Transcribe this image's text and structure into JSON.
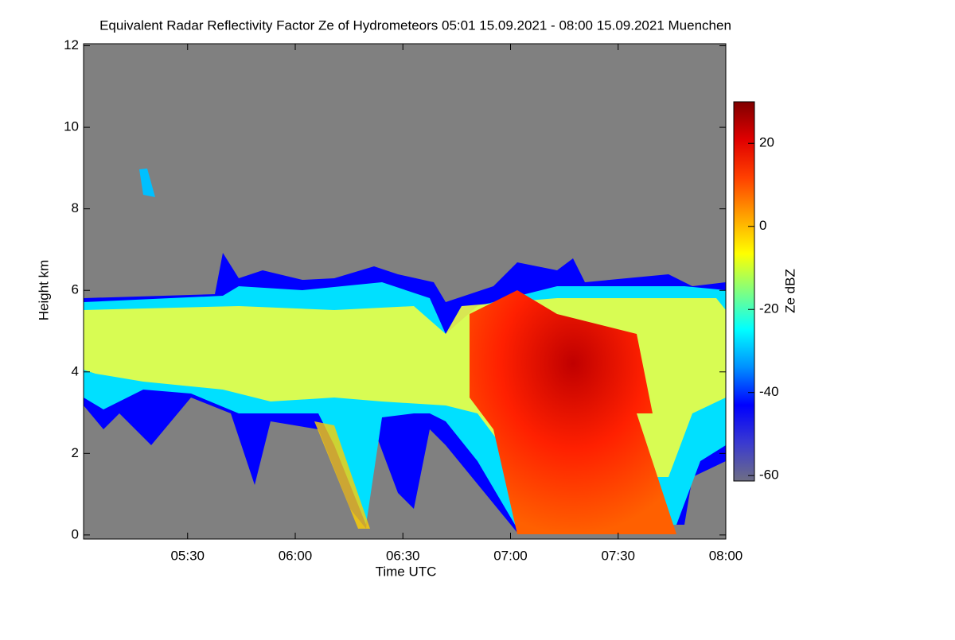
{
  "chart_data": {
    "type": "heatmap",
    "title": "Equivalent Radar Reflectivity Factor Ze of Hydrometeors   05:01 15.09.2021 - 08:00 15.09.2021 Muenchen",
    "x_label": "Time UTC",
    "y_label": "Height km",
    "colorbar_label": "Ze dBZ",
    "xlim": [
      301,
      480
    ],
    "xticks": [
      {
        "value": 330,
        "label": "05:30"
      },
      {
        "value": 360,
        "label": "06:00"
      },
      {
        "value": 390,
        "label": "06:30"
      },
      {
        "value": 420,
        "label": "07:00"
      },
      {
        "value": 450,
        "label": "07:30"
      },
      {
        "value": 480,
        "label": "08:00"
      }
    ],
    "ylim": [
      -0.1,
      12.05
    ],
    "yticks": [
      0,
      2,
      4,
      6,
      8,
      10,
      12
    ],
    "clim": [
      -61.3,
      30
    ],
    "cticks": [
      -60,
      -40,
      -20,
      0,
      20
    ],
    "background": "#808080",
    "colormap": [
      "#6e6e84",
      "#3a3ad0",
      "#0000ff",
      "#0090ff",
      "#00ffff",
      "#80ff80",
      "#ffff00",
      "#ffa000",
      "#ff4000",
      "#e00000",
      "#800000"
    ]
  }
}
